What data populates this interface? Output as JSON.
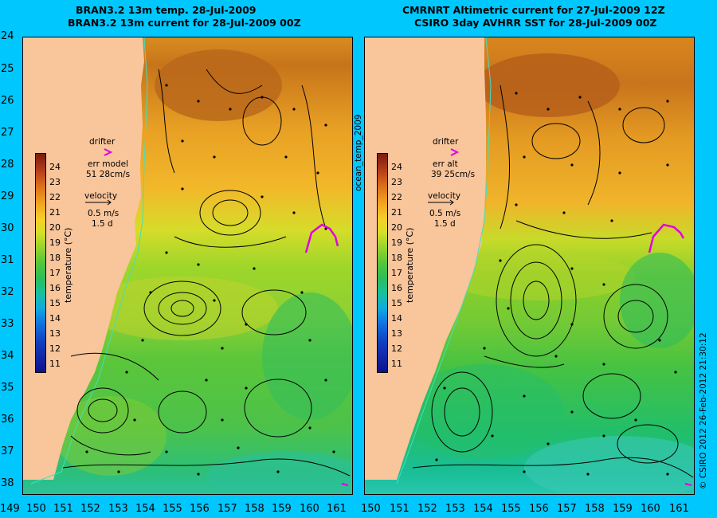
{
  "left_panel": {
    "title_line1": "BRAN3.2 13m temp. 28-Jul-2009",
    "title_line2": "BRAN3.2 13m current for 28-Jul-2009 00Z",
    "drifter_label": "drifter",
    "err_label": "err model",
    "err_value": "51 28cm/s",
    "velocity_label": "velocity",
    "velocity_scale": "0.5 m/s",
    "velocity_days": "1.5 d"
  },
  "right_panel": {
    "title_line1": "CMRNRT Altimetric current for 27-Jul-2009 12Z",
    "title_line2": "CSIRO 3day AVHRR SST for 28-Jul-2009 00Z",
    "drifter_label": "drifter",
    "err_label": "err alt",
    "err_value": "39 25cm/s",
    "velocity_label": "velocity",
    "velocity_scale": "0.5 m/s",
    "velocity_days": "1.5 d"
  },
  "middle_label": "ocean_temp_2009",
  "credit": "© CSIRO 2012   26-Feb-2012 21:30:12",
  "colorbar": {
    "title": "temperature (°C)",
    "ticks": [
      "24",
      "23",
      "22",
      "21",
      "20",
      "19",
      "18",
      "17",
      "16",
      "15",
      "14",
      "13",
      "12",
      "11"
    ]
  },
  "lat_labels": [
    "24",
    "25",
    "26",
    "27",
    "28",
    "29",
    "30",
    "31",
    "32",
    "33",
    "34",
    "35",
    "36",
    "37",
    "38"
  ],
  "lon_labels": [
    "149",
    "150",
    "151",
    "152",
    "153",
    "154",
    "155",
    "156",
    "157",
    "158",
    "159",
    "160",
    "161",
    "150",
    "151",
    "152",
    "153",
    "154",
    "155",
    "156",
    "157",
    "158",
    "159",
    "160",
    "161"
  ],
  "colors": {
    "background": "#00c8ff",
    "land": "#f9c59b",
    "drifter": "#e000e0",
    "arrows": "#000000"
  }
}
